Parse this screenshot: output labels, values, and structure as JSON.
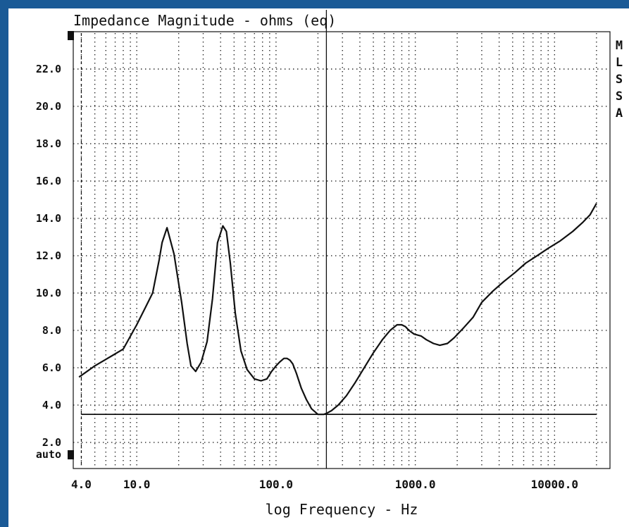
{
  "chart_data": {
    "type": "line",
    "title": "Impedance Magnitude - ohms (eq)",
    "xlabel": "log Frequency - Hz",
    "ylabel": "",
    "x_scale": "log",
    "xlim": [
      3.5,
      25000
    ],
    "ylim": [
      0.6,
      24.0
    ],
    "y_ticks": [
      2.0,
      4.0,
      6.0,
      8.0,
      10.0,
      12.0,
      14.0,
      16.0,
      18.0,
      20.0,
      22.0
    ],
    "y_tick_labels": [
      "2.0",
      "4.0",
      "6.0",
      "8.0",
      "10.0",
      "12.0",
      "14.0",
      "16.0",
      "18.0",
      "20.0",
      "22.0"
    ],
    "y_bottom_label": "auto",
    "x_tick_values": [
      4,
      10,
      100,
      1000,
      10000
    ],
    "x_tick_labels": [
      "4.0",
      "10.0",
      "100.0",
      "1000.0",
      "10000.0"
    ],
    "side_label": [
      "M",
      "L",
      "S",
      "S",
      "A"
    ],
    "grid": true,
    "reference_level": 3.5,
    "cursor_frequency": 230,
    "series": [
      {
        "x": [
          3.85,
          5,
          6.5,
          8,
          10,
          11.5,
          13,
          14.5,
          15.2,
          16.5,
          18.5,
          21,
          23,
          24.5,
          26.5,
          29,
          32,
          35,
          38,
          41.5,
          44,
          47,
          51,
          56,
          62,
          70,
          78,
          86,
          93,
          100,
          106,
          114,
          120,
          126,
          132,
          140,
          152,
          165,
          180,
          200,
          220,
          230,
          250,
          280,
          320,
          370,
          430,
          500,
          580,
          660,
          740,
          800,
          850,
          900,
          980,
          1100,
          1200,
          1350,
          1500,
          1700,
          1900,
          2200,
          2600,
          3000,
          3600,
          4300,
          5200,
          6200,
          7500,
          9000,
          11000,
          13500,
          16000,
          18000,
          20000
        ],
        "y": [
          5.5,
          6.1,
          6.6,
          7.0,
          8.3,
          9.2,
          10.0,
          11.8,
          12.7,
          13.5,
          12.1,
          9.5,
          7.3,
          6.1,
          5.8,
          6.3,
          7.4,
          9.7,
          12.7,
          13.6,
          13.3,
          11.6,
          8.9,
          6.9,
          5.9,
          5.4,
          5.3,
          5.4,
          5.8,
          6.1,
          6.3,
          6.5,
          6.5,
          6.4,
          6.2,
          5.7,
          4.9,
          4.3,
          3.8,
          3.5,
          3.5,
          3.55,
          3.7,
          4.0,
          4.5,
          5.2,
          6.0,
          6.8,
          7.5,
          8.0,
          8.3,
          8.3,
          8.2,
          8.0,
          7.8,
          7.7,
          7.5,
          7.3,
          7.2,
          7.3,
          7.6,
          8.1,
          8.7,
          9.5,
          10.1,
          10.6,
          11.1,
          11.6,
          12.0,
          12.4,
          12.8,
          13.3,
          13.8,
          14.2,
          14.8
        ]
      }
    ]
  }
}
